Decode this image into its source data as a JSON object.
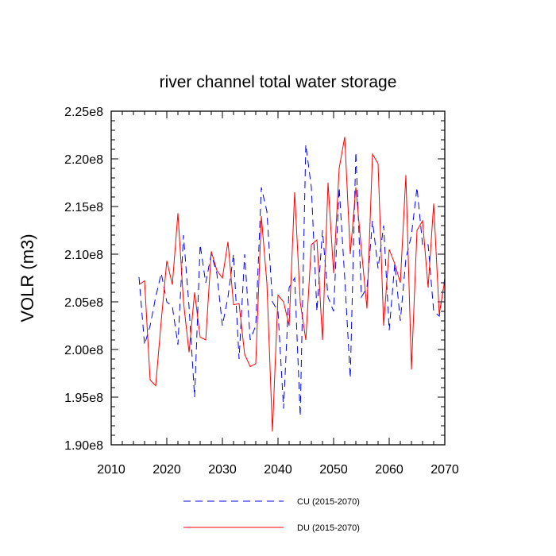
{
  "chart_data": {
    "type": "line",
    "title": "river channel total water storage",
    "xlabel": "",
    "ylabel": "VOLR  (m3)",
    "xlim": [
      2010,
      2070
    ],
    "ylim": [
      190000000.0,
      225000000.0
    ],
    "x_ticks": [
      2010,
      2020,
      2030,
      2040,
      2050,
      2060,
      2070
    ],
    "x_tick_labels": [
      "2010",
      "2020",
      "2030",
      "2040",
      "2050",
      "2060",
      "2070"
    ],
    "y_ticks": [
      190000000.0,
      195000000.0,
      200000000.0,
      205000000.0,
      210000000.0,
      215000000.0,
      220000000.0,
      225000000.0
    ],
    "y_tick_labels": [
      "1.90e8",
      "1.95e8",
      "2.00e8",
      "2.05e8",
      "2.10e8",
      "2.15e8",
      "2.20e8",
      "2.25e8"
    ],
    "legend_position": "bottom-center",
    "x": [
      2015,
      2016,
      2017,
      2018,
      2019,
      2020,
      2021,
      2022,
      2023,
      2024,
      2025,
      2026,
      2027,
      2028,
      2029,
      2030,
      2031,
      2032,
      2033,
      2034,
      2035,
      2036,
      2037,
      2038,
      2039,
      2040,
      2041,
      2042,
      2043,
      2044,
      2045,
      2046,
      2047,
      2048,
      2049,
      2050,
      2051,
      2052,
      2053,
      2054,
      2055,
      2056,
      2057,
      2058,
      2059,
      2060,
      2061,
      2062,
      2063,
      2064,
      2065,
      2066,
      2067,
      2068,
      2069,
      2070
    ],
    "series": [
      {
        "name": "CU (2015-2070)",
        "color": "#0000ff",
        "dash": "dashed",
        "values": [
          207.6,
          200.5,
          202.5,
          205.5,
          208.0,
          205.0,
          204.5,
          200.5,
          212.0,
          204.5,
          195.0,
          211.0,
          207.0,
          210.0,
          208.0,
          202.5,
          205.5,
          210.0,
          199.0,
          210.0,
          201.0,
          202.5,
          217.0,
          214.5,
          205.0,
          204.0,
          193.8,
          206.5,
          207.5,
          193.0,
          221.5,
          217.0,
          204.0,
          212.5,
          205.5,
          204.0,
          217.0,
          207.5,
          197.0,
          220.7,
          205.5,
          206.5,
          213.5,
          208.5,
          213.0,
          202.0,
          209.0,
          203.0,
          209.5,
          212.0,
          217.0,
          211.0,
          211.0,
          204.0,
          203.5,
          207.5
        ]
      },
      {
        "name": "DU (2015-2070)",
        "color": "#ff0000",
        "dash": "solid",
        "values": [
          206.8,
          207.2,
          196.8,
          196.2,
          203.0,
          209.3,
          206.8,
          214.3,
          205.0,
          199.7,
          206.0,
          201.3,
          201.0,
          210.3,
          208.3,
          207.5,
          211.3,
          204.7,
          204.8,
          199.5,
          198.2,
          198.5,
          214.0,
          207.0,
          191.4,
          205.7,
          205.0,
          202.5,
          216.5,
          205.0,
          201.0,
          211.0,
          211.5,
          201.0,
          217.5,
          208.0,
          219.0,
          222.3,
          210.0,
          217.0,
          210.5,
          204.3,
          220.5,
          219.5,
          202.5,
          210.5,
          209.0,
          207.0,
          218.3,
          197.9,
          212.5,
          213.5,
          206.5,
          215.3,
          203.7,
          207.3
        ]
      }
    ]
  }
}
